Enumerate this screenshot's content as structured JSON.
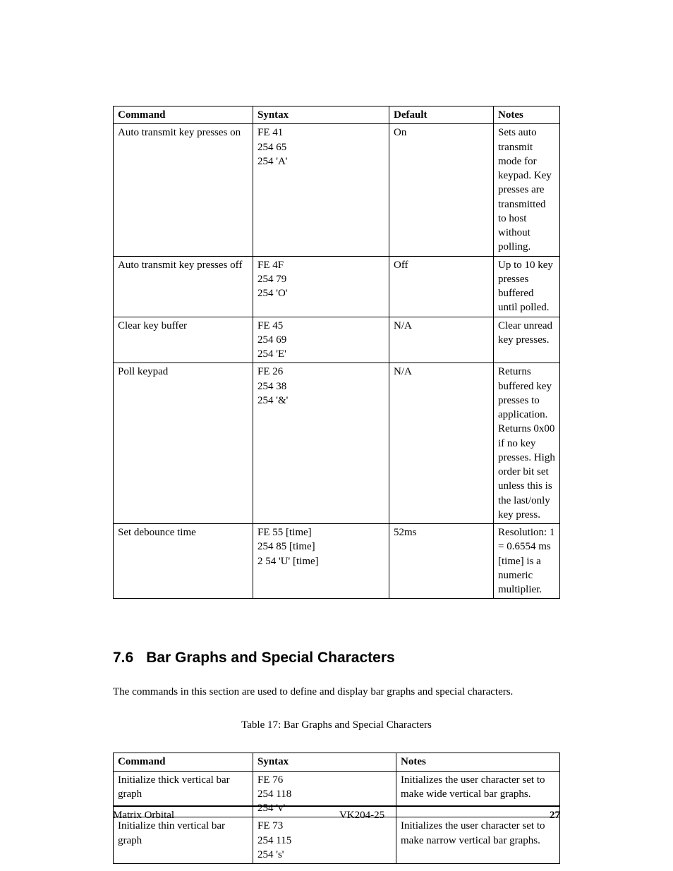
{
  "table1": {
    "headers": [
      "Command",
      "Syntax",
      "Default",
      "Notes"
    ],
    "rows": [
      {
        "command": "Auto transmit key presses on",
        "syntax": [
          "FE 41",
          "254 65",
          "254 'A'"
        ],
        "default": "On",
        "notes": "Sets auto transmit mode for keypad. Key presses are transmitted to host without polling."
      },
      {
        "command": "Auto transmit key presses off",
        "syntax": [
          "FE 4F",
          "254 79",
          "254 'O'"
        ],
        "default": "Off",
        "notes": "Up to 10 key presses buffered until polled."
      },
      {
        "command": "Clear key buffer",
        "syntax": [
          "FE 45",
          "254 69",
          "254 'E'"
        ],
        "default": "N/A",
        "notes": "Clear unread key presses."
      },
      {
        "command": "Poll keypad",
        "syntax": [
          "FE 26",
          "254 38",
          "254 '&'"
        ],
        "default": "N/A",
        "notes": "Returns buffered key presses to application. Returns 0x00 if no key presses. High order bit set unless this is the last/only key press."
      },
      {
        "command": "Set debounce time",
        "syntax": [
          "FE 55 [time]",
          "254 85 [time]",
          "2 54 'U' [time]"
        ],
        "default": "52ms",
        "notes": "Resolution: 1 = 0.6554 ms [time] is a numeric multiplier."
      }
    ]
  },
  "section": {
    "number": "7.6",
    "title": "Bar Graphs and Special Characters"
  },
  "intro": "The commands in this section are used to define and display bar graphs and special characters.",
  "caption": "Table 17: Bar Graphs and Special Characters",
  "table2": {
    "headers": [
      "Command",
      "Syntax",
      "Notes"
    ],
    "rows": [
      {
        "command": "Initialize thick vertical bar graph",
        "syntax": [
          "FE 76",
          "254 118",
          "254 'v'"
        ],
        "notes": "Initializes the user character set to make wide vertical bar graphs."
      },
      {
        "command": "Initialize thin vertical bar graph",
        "syntax": [
          "FE 73",
          "254 115",
          "254 's'"
        ],
        "notes": "Initializes the user character set to make narrow vertical bar graphs."
      }
    ]
  },
  "footer": {
    "left": "Matrix Orbital",
    "center": "VK204-25",
    "page": "27"
  }
}
